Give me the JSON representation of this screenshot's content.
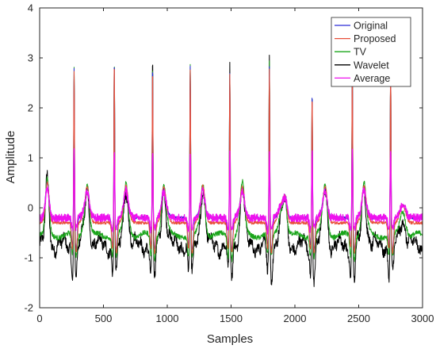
{
  "chart_data": {
    "type": "line",
    "title": "",
    "xlabel": "Samples",
    "ylabel": "Amplitude",
    "xlim": [
      0,
      3000
    ],
    "ylim": [
      -2,
      4
    ],
    "xticks": [
      0,
      500,
      1000,
      1500,
      2000,
      2500,
      3000
    ],
    "yticks": [
      -2,
      -1,
      0,
      1,
      2,
      3,
      4
    ],
    "grid": false,
    "legend_position": "top-right",
    "r_peaks": [
      270,
      585,
      885,
      1180,
      1490,
      1800,
      2135,
      2450,
      2750
    ],
    "peak_heights": {
      "Original": [
        2.93,
        3.12,
        3.0,
        2.97,
        2.88,
        3.01,
        2.47,
        3.0,
        2.97
      ],
      "Average": [
        1.2,
        1.22,
        1.2,
        1.2,
        1.2,
        1.22,
        1.2,
        1.22,
        1.2
      ]
    },
    "series": [
      {
        "name": "Original",
        "color": "#2b2bd6",
        "baseline": -0.2,
        "p_wave": 0.35,
        "t_wave": 0.25,
        "q_dip": -0.55,
        "s_dip": -0.65,
        "noise": 0.03
      },
      {
        "name": "Proposed",
        "color": "#e8503a",
        "baseline": -0.3,
        "p_wave": 0.4,
        "t_wave": 0.35,
        "q_dip": -0.5,
        "s_dip": -0.6,
        "noise": 0.03
      },
      {
        "name": "TV",
        "color": "#1aa51a",
        "baseline": -0.55,
        "p_wave": 0.55,
        "t_wave": 0.5,
        "q_dip": -0.4,
        "s_dip": -0.45,
        "noise": 0.05
      },
      {
        "name": "Wavelet",
        "color": "#000000",
        "baseline": -0.75,
        "p_wave": 0.65,
        "t_wave": 0.55,
        "q_dip": -0.55,
        "s_dip": -0.65,
        "noise": 0.1
      },
      {
        "name": "Average",
        "color": "#ee11ee",
        "baseline": -0.2,
        "p_wave": 0.3,
        "t_wave": 0.25,
        "q_dip": -0.25,
        "s_dip": -0.2,
        "noise": 0.08
      }
    ]
  }
}
